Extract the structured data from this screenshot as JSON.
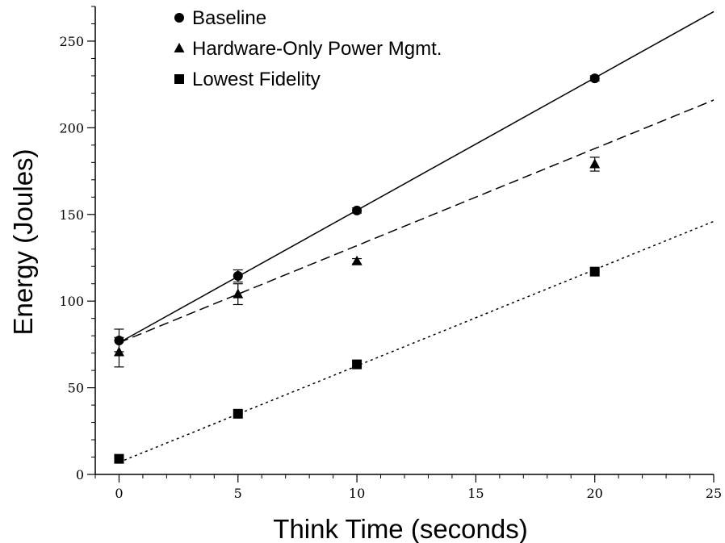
{
  "chart_data": {
    "type": "scatter",
    "title": "",
    "xlabel": "Think Time (seconds)",
    "ylabel": "Energy (Joules)",
    "xlim": [
      -1,
      25
    ],
    "ylim": [
      0,
      270
    ],
    "xticks": [
      0,
      5,
      10,
      15,
      20,
      25
    ],
    "yticks": [
      0,
      50,
      100,
      150,
      200,
      250
    ],
    "x_minor_step": 1,
    "y_minor_step": 10,
    "grid": false,
    "legend_position": "top-left",
    "series": [
      {
        "name": "Baseline",
        "marker": "circle",
        "line_style": "solid",
        "x": [
          0,
          5,
          10,
          20
        ],
        "y": [
          77.3,
          114.5,
          152.3,
          228.5
        ],
        "err": [
          6.5,
          3.5,
          1.5,
          1.5
        ],
        "fit": {
          "x": [
            0,
            25
          ],
          "y": [
            76,
            267
          ]
        }
      },
      {
        "name": "Hardware-Only Power Mgmt.",
        "marker": "triangle",
        "line_style": "dashed",
        "x": [
          0,
          5,
          10,
          20
        ],
        "y": [
          70.5,
          104.0,
          123.0,
          179.0
        ],
        "err": [
          8.5,
          6.0,
          1.5,
          4.0
        ],
        "fit": {
          "x": [
            0,
            25
          ],
          "y": [
            76,
            216
          ]
        }
      },
      {
        "name": "Lowest Fidelity",
        "marker": "square",
        "line_style": "dotted",
        "x": [
          0,
          5,
          10,
          20
        ],
        "y": [
          9.0,
          35.0,
          63.5,
          117.0
        ],
        "err": [
          0,
          0,
          0,
          0
        ],
        "fit": {
          "x": [
            0,
            25
          ],
          "y": [
            7,
            146
          ]
        }
      }
    ]
  },
  "colors": {
    "ink": "#000000",
    "background": "#ffffff"
  }
}
